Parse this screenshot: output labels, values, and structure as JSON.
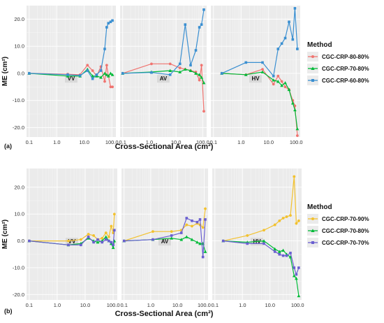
{
  "chart_data": [
    {
      "type": "line",
      "panel_tag": "(a)",
      "xlabel": "Cross-Sectional Area (cm²)",
      "ylabel": "ME (cm²)",
      "x_scale": "log",
      "xlim": [
        0.08,
        140
      ],
      "ylim": [
        -23.5,
        25
      ],
      "yticks": [
        -20,
        -10,
        0,
        10,
        20
      ],
      "ytick_labels": [
        "-20.0",
        "-10.0",
        "0.0",
        "10.0",
        "20.0"
      ],
      "grid": true,
      "legend": {
        "title": "Method",
        "position": "right",
        "entries": [
          "CGC-CRP-80-80%",
          "CGC-CRP-70-80%",
          "CGC-CRP-60-80%"
        ]
      },
      "series_styles": [
        {
          "name": "CGC-CRP-80-80%",
          "color": "#f07470",
          "marker": "circle"
        },
        {
          "name": "CGC-CRP-70-80%",
          "color": "#00ba38",
          "marker": "triangle"
        },
        {
          "name": "CGC-CRP-60-80%",
          "color": "#3a8fd1",
          "marker": "square"
        }
      ],
      "facets": [
        {
          "label": "VV",
          "xticks": [
            0.1,
            1,
            10,
            100
          ],
          "xtick_labels": [
            "0.1",
            "1.0",
            "10.0",
            "100.0"
          ],
          "series": [
            {
              "x": [
                0.1,
                2.5,
                7,
                13,
                20,
                28,
                40,
                55,
                65,
                75,
                90,
                105
              ],
              "y": [
                0,
                -0.3,
                -0.5,
                3,
                1,
                -1,
                2.5,
                -3,
                3,
                -1,
                -5,
                -5
              ]
            },
            {
              "x": [
                0.1,
                2.5,
                7,
                13,
                20,
                28,
                40,
                55,
                65,
                75,
                90,
                105
              ],
              "y": [
                0,
                -1,
                -1,
                1.5,
                -1,
                -1,
                -1.5,
                0,
                -0.5,
                -1,
                0,
                -0.5
              ]
            },
            {
              "x": [
                0.1,
                2.5,
                7,
                13,
                20,
                28,
                40,
                55,
                65,
                75,
                90,
                105
              ],
              "y": [
                0,
                -0.5,
                -0.8,
                1,
                -2,
                -0.5,
                1,
                9,
                17,
                18.5,
                19,
                19.5
              ]
            }
          ]
        },
        {
          "label": "AV",
          "xticks": [
            0.1,
            1,
            10,
            100
          ],
          "xtick_labels": [
            "0.1",
            "1.0",
            "10.0",
            "100.0"
          ],
          "series": [
            {
              "x": [
                0.1,
                1.2,
                6,
                14,
                22,
                35,
                55,
                75,
                90,
                110
              ],
              "y": [
                0,
                3.5,
                3.5,
                2,
                1.5,
                1,
                0.5,
                -2.5,
                3,
                -14
              ]
            },
            {
              "x": [
                0.1,
                1.2,
                6,
                14,
                22,
                35,
                55,
                75,
                90,
                110
              ],
              "y": [
                0,
                0.5,
                1,
                0.5,
                1.5,
                1,
                0,
                -0.5,
                -1.5,
                -3.5
              ]
            },
            {
              "x": [
                0.1,
                1.2,
                6,
                14,
                22,
                35,
                55,
                75,
                90,
                110
              ],
              "y": [
                0,
                0.3,
                -0.5,
                3.5,
                18,
                3,
                8.5,
                17,
                18,
                23.5
              ]
            }
          ]
        },
        {
          "label": "HV",
          "xticks": [
            0.1,
            1,
            10,
            100
          ],
          "xtick_labels": [
            "0.1",
            "1.0",
            "10.0",
            "100.0"
          ],
          "series": [
            {
              "x": [
                0.2,
                1.5,
                6,
                15,
                22,
                30,
                40,
                55,
                75,
                90,
                110
              ],
              "y": [
                0,
                -0.5,
                1.5,
                -4,
                -1,
                -3,
                -5,
                -6,
                -10,
                -12,
                -23
              ]
            },
            {
              "x": [
                0.2,
                1.5,
                6,
                15,
                22,
                30,
                40,
                55,
                75,
                90,
                110
              ],
              "y": [
                0,
                -0.5,
                0.5,
                -2.5,
                -3,
                -4.5,
                -3.5,
                -6,
                -11,
                -13.5,
                -20.5
              ]
            },
            {
              "x": [
                0.2,
                1.5,
                6,
                15,
                22,
                30,
                40,
                55,
                75,
                90,
                110
              ],
              "y": [
                0,
                4,
                4,
                -1,
                9,
                11,
                13,
                19,
                12.5,
                24,
                9
              ]
            }
          ]
        }
      ]
    },
    {
      "type": "line",
      "panel_tag": "(b)",
      "xlabel": "Cross-Sectional Area (cm²)",
      "ylabel": "ME (cm²)",
      "x_scale": "log",
      "xlim": [
        0.08,
        140
      ],
      "ylim": [
        -22,
        27
      ],
      "yticks": [
        -20,
        -10,
        0,
        10,
        20
      ],
      "ytick_labels": [
        "-20.0",
        "-10.0",
        "0.0",
        "10.0",
        "20.0"
      ],
      "grid": true,
      "legend": {
        "title": "Method",
        "position": "right",
        "entries": [
          "CGC-CRP-70-90%",
          "CGC-CRP-70-80%",
          "CGC-CRP-70-70%"
        ]
      },
      "series_styles": [
        {
          "name": "CGC-CRP-70-90%",
          "color": "#f2c12e",
          "marker": "circle"
        },
        {
          "name": "CGC-CRP-70-80%",
          "color": "#00ba38",
          "marker": "triangle"
        },
        {
          "name": "CGC-CRP-70-70%",
          "color": "#6a5fd0",
          "marker": "square"
        }
      ],
      "facets": [
        {
          "label": "VV",
          "xticks": [
            0.1,
            1,
            10,
            100
          ],
          "xtick_labels": [
            "0.1",
            "1.0",
            "10.0",
            "100.0"
          ],
          "series": [
            {
              "x": [
                0.1,
                2.5,
                7,
                13,
                20,
                28,
                40,
                55,
                70,
                85,
                100,
                110
              ],
              "y": [
                0,
                0,
                0.5,
                2.5,
                2,
                0.5,
                1,
                3,
                1.5,
                5.5,
                3,
                10
              ]
            },
            {
              "x": [
                0.1,
                2.5,
                7,
                13,
                20,
                28,
                40,
                55,
                70,
                85,
                100,
                110
              ],
              "y": [
                0,
                -1.5,
                -1,
                1,
                0,
                -0.5,
                0,
                1.5,
                0,
                -1,
                -2.5,
                0
              ]
            },
            {
              "x": [
                0.1,
                2.5,
                7,
                13,
                20,
                28,
                40,
                55,
                70,
                85,
                100,
                110
              ],
              "y": [
                0,
                -1.5,
                -1.5,
                1.5,
                -0.5,
                0.5,
                -0.5,
                0.5,
                0,
                -0.5,
                -1.5,
                4
              ]
            }
          ]
        },
        {
          "label": "AV",
          "xticks": [
            0.1,
            1,
            10,
            100
          ],
          "xtick_labels": [
            "0.1",
            "1.0",
            "10.0",
            "100.0"
          ],
          "series": [
            {
              "x": [
                0.1,
                1.2,
                6,
                14,
                22,
                35,
                55,
                70,
                90,
                110
              ],
              "y": [
                0,
                3.5,
                3.5,
                4,
                6,
                5.5,
                6.5,
                6,
                5,
                12
              ]
            },
            {
              "x": [
                0.1,
                1.2,
                6,
                14,
                22,
                35,
                55,
                70,
                90,
                110
              ],
              "y": [
                0,
                0.5,
                1,
                0.5,
                1.5,
                0.5,
                -0.5,
                -1,
                -1,
                -4
              ]
            },
            {
              "x": [
                0.1,
                1.2,
                6,
                14,
                22,
                35,
                55,
                70,
                90,
                110
              ],
              "y": [
                0,
                0.5,
                2,
                3,
                8.5,
                7.5,
                7,
                8,
                -6,
                8
              ]
            }
          ]
        },
        {
          "label": "HV",
          "xticks": [
            0.1,
            1,
            10,
            100
          ],
          "xtick_labels": [
            "0.1",
            "1.0",
            "10.0",
            "100.0"
          ],
          "series": [
            {
              "x": [
                0.2,
                1.5,
                6,
                15,
                22,
                30,
                40,
                55,
                75,
                90,
                110
              ],
              "y": [
                0,
                2,
                4,
                6,
                7.5,
                8.5,
                9,
                9.5,
                24,
                6.5,
                7.5
              ]
            },
            {
              "x": [
                0.2,
                1.5,
                6,
                15,
                22,
                30,
                40,
                55,
                75,
                90,
                110
              ],
              "y": [
                0,
                -0.5,
                0,
                -3,
                -4,
                -3.5,
                -5,
                -6,
                -13,
                -14,
                -20.5
              ]
            },
            {
              "x": [
                0.2,
                1.5,
                6,
                15,
                22,
                30,
                40,
                55,
                75,
                90,
                110
              ],
              "y": [
                0,
                -1,
                -1,
                -4,
                -5,
                -5.5,
                -5.5,
                -4.5,
                -10,
                -12.5,
                -10
              ]
            }
          ]
        }
      ]
    }
  ]
}
